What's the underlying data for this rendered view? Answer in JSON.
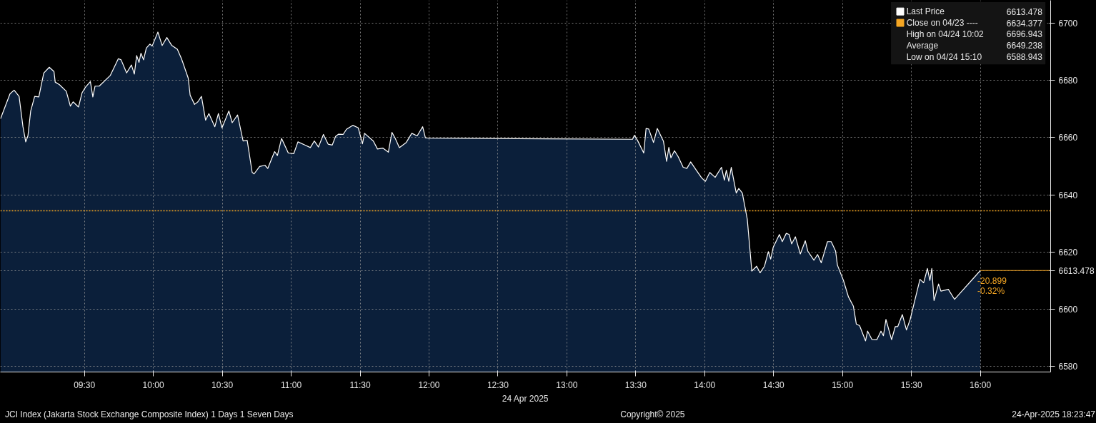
{
  "chart_data": {
    "type": "area",
    "xlabel": "24 Apr 2025",
    "x": [
      8.891,
      8.96,
      8.99,
      9.026,
      9.054,
      9.074,
      9.09,
      9.11,
      9.139,
      9.169,
      9.205,
      9.245,
      9.279,
      9.288,
      9.319,
      9.368,
      9.398,
      9.418,
      9.457,
      9.483,
      9.507,
      9.543,
      9.561,
      9.577,
      9.607,
      9.687,
      9.746,
      9.766,
      9.806,
      9.841,
      9.862,
      9.879,
      9.896,
      9.91,
      9.929,
      9.949,
      9.975,
      9.991,
      10.033,
      10.064,
      10.098,
      10.134,
      10.174,
      10.204,
      10.253,
      10.267,
      10.299,
      10.323,
      10.349,
      10.379,
      10.403,
      10.446,
      10.472,
      10.498,
      10.548,
      10.572,
      10.611,
      10.651,
      10.681,
      10.717,
      10.731,
      10.771,
      10.81,
      10.83,
      10.86,
      10.88,
      10.9,
      10.93,
      10.979,
      11.019,
      11.049,
      11.099,
      11.139,
      11.168,
      11.198,
      11.234,
      11.268,
      11.298,
      11.322,
      11.344,
      11.377,
      11.401,
      11.447,
      11.487,
      11.517,
      11.532,
      11.596,
      11.626,
      11.666,
      11.705,
      11.731,
      11.755,
      11.785,
      11.835,
      11.875,
      11.914,
      11.954,
      11.974,
      12.004,
      13.477,
      13.49,
      13.513,
      13.558,
      13.575,
      13.594,
      13.629,
      13.656,
      13.701,
      13.724,
      13.74,
      13.755,
      13.781,
      13.808,
      13.844,
      13.871,
      13.898,
      13.942,
      13.978,
      14.005,
      14.037,
      14.076,
      14.122,
      14.143,
      14.157,
      14.175,
      14.193,
      14.229,
      14.247,
      14.273,
      14.309,
      14.342,
      14.377,
      14.402,
      14.434,
      14.462,
      14.479,
      14.497,
      14.542,
      14.563,
      14.592,
      14.613,
      14.631,
      14.658,
      14.694,
      14.73,
      14.748,
      14.793,
      14.819,
      14.846,
      14.891,
      14.918,
      14.95,
      14.963,
      15.007,
      15.043,
      15.079,
      15.1,
      15.124,
      15.167,
      15.182,
      15.213,
      15.249,
      15.279,
      15.297,
      15.315,
      15.356,
      15.383,
      15.401,
      15.434,
      15.464,
      15.491,
      15.535,
      15.562,
      15.589,
      15.616,
      15.634,
      15.648,
      15.664,
      15.697,
      15.714,
      15.768,
      15.813,
      16.0
    ],
    "series": [
      {
        "name": "Last Price",
        "color": "#ffffff",
        "values": [
          6666.6,
          6675.3,
          6676.6,
          6674.4,
          6663.8,
          6658.5,
          6660.6,
          6669.3,
          6674.4,
          6674.2,
          6682.6,
          6684.6,
          6683.1,
          6679.4,
          6678.5,
          6676.2,
          6671.0,
          6672.5,
          6670.7,
          6675.7,
          6677.6,
          6679.6,
          6674.2,
          6678.0,
          6678.0,
          6681.7,
          6687.6,
          6687.2,
          6682.6,
          6685.4,
          6682.2,
          6688.7,
          6686.3,
          6689.5,
          6687.2,
          6691.3,
          6692.7,
          6692.0,
          6696.9,
          6692.2,
          6695.0,
          6692.2,
          6690.9,
          6687.6,
          6680.8,
          6674.8,
          6671.6,
          6672.5,
          6674.4,
          6666.1,
          6668.4,
          6663.8,
          6668.4,
          6663.4,
          6669.3,
          6665.2,
          6667.9,
          6658.8,
          6659.0,
          6647.8,
          6647.3,
          6649.9,
          6650.3,
          6649.2,
          6652.8,
          6655.1,
          6653.7,
          6659.7,
          6654.6,
          6654.4,
          6658.5,
          6657.4,
          6656.5,
          6658.8,
          6656.7,
          6661.1,
          6657.7,
          6657.4,
          6660.4,
          6661.2,
          6661.1,
          6662.9,
          6664.3,
          6663.4,
          6657.8,
          6661.5,
          6658.8,
          6656.0,
          6656.3,
          6654.9,
          6661.8,
          6659.7,
          6656.5,
          6658.3,
          6661.5,
          6660.6,
          6663.8,
          6659.9,
          6659.8,
          6659.4,
          6660.8,
          6659.0,
          6654.6,
          6663.2,
          6663.0,
          6658.3,
          6663.2,
          6658.7,
          6651.7,
          6656.6,
          6652.9,
          6655.4,
          6653.3,
          6649.6,
          6649.2,
          6651.5,
          6648.4,
          6645.9,
          6644.7,
          6647.8,
          6646.1,
          6649.6,
          6645.1,
          6648.6,
          6644.7,
          6649.6,
          6640.6,
          6642.2,
          6640.6,
          6631.5,
          6613.3,
          6615.0,
          6612.7,
          6615.0,
          6620.1,
          6617.5,
          6621.6,
          6626.1,
          6623.6,
          6626.5,
          6626.1,
          6622.8,
          6625.3,
          6619.3,
          6623.9,
          6620.3,
          6617.1,
          6619.1,
          6616.2,
          6623.6,
          6623.6,
          6620.3,
          6615.4,
          6610.0,
          6604.3,
          6601.0,
          6594.8,
          6594.2,
          6588.9,
          6592.3,
          6589.4,
          6589.3,
          6592.3,
          6590.7,
          6596.4,
          6589.3,
          6593.9,
          6593.9,
          6598.1,
          6592.7,
          6596.4,
          6605.1,
          6610.4,
          6609.2,
          6614.2,
          6610.0,
          6614.2,
          6603.0,
          6608.8,
          6606.3,
          6606.9,
          6603.4,
          6613.5
        ]
      }
    ],
    "xlim": [
      8.89,
      16.51
    ],
    "ylim": [
      6578,
      6708
    ],
    "xticks": [
      {
        "value": 9.5,
        "label": "09:30"
      },
      {
        "value": 10,
        "label": "10:00"
      },
      {
        "value": 10.5,
        "label": "10:30"
      },
      {
        "value": 11,
        "label": "11:00"
      },
      {
        "value": 11.5,
        "label": "11:30"
      },
      {
        "value": 12,
        "label": "12:00"
      },
      {
        "value": 12.5,
        "label": "12:30"
      },
      {
        "value": 13,
        "label": "13:00"
      },
      {
        "value": 13.5,
        "label": "13:30"
      },
      {
        "value": 14,
        "label": "14:00"
      },
      {
        "value": 14.5,
        "label": "14:30"
      },
      {
        "value": 15,
        "label": "15:00"
      },
      {
        "value": 15.5,
        "label": "15:30"
      },
      {
        "value": 16,
        "label": "16:00"
      }
    ],
    "yticks": [
      6580,
      6600,
      6613.478,
      6620,
      6640,
      6660,
      6680,
      6700
    ],
    "grid": true,
    "legend": "top right",
    "ref_lines": [
      {
        "axis": "y",
        "value": 6634.377,
        "label": "Close on 04/23 ----",
        "color": "#f5a623",
        "line_style": "dotted"
      }
    ],
    "annotations": [
      "6613.478",
      "6634.377",
      "High on 04/24 10:02",
      "6696.943",
      "Average",
      "6649.238",
      "Low on 04/24 15:10",
      "6588.943",
      {
        "text": "-20.899"
      },
      {
        "text": "-0.32%"
      },
      "JCI Index (Jakarta Stock Exchange Composite Index) 1 Days 1 Seven Days",
      "Copyright© 2025",
      "24-Apr-2025 18:23:47"
    ]
  }
}
